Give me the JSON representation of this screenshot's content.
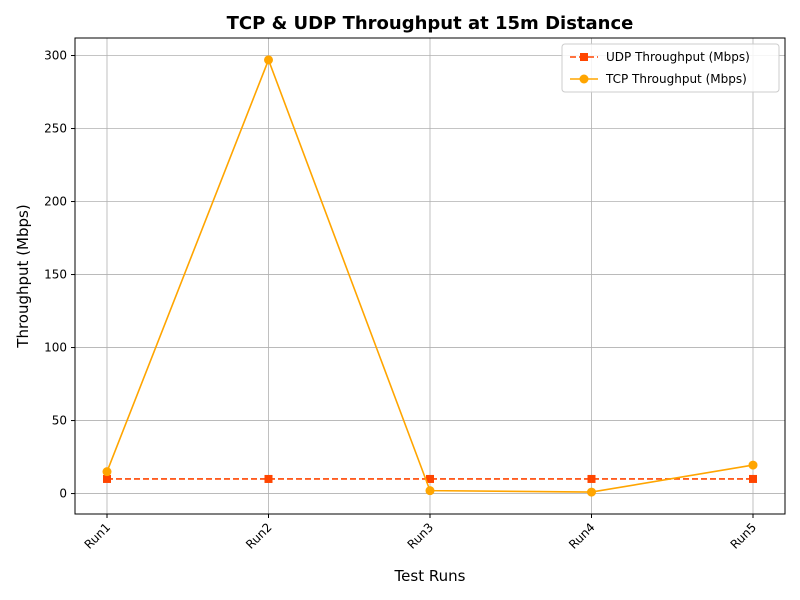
{
  "chart_data": {
    "type": "line",
    "title": "TCP & UDP Throughput at 15m Distance",
    "xlabel": "Test Runs",
    "ylabel": "Throughput (Mbps)",
    "categories": [
      "Run1",
      "Run2",
      "Run3",
      "Run4",
      "Run5"
    ],
    "ylim": [
      -14,
      312
    ],
    "yticks": [
      0,
      50,
      100,
      150,
      200,
      250,
      300
    ],
    "grid": true,
    "legend_position": "top-right",
    "series": [
      {
        "name": "UDP Throughput (Mbps)",
        "values": [
          10,
          10,
          10,
          10,
          10
        ],
        "color": "#ff4500",
        "line_style": "dashed",
        "marker": "square"
      },
      {
        "name": "TCP Throughput (Mbps)",
        "values": [
          15,
          297,
          2,
          1,
          19.5
        ],
        "color": "#ffa500",
        "line_style": "solid",
        "marker": "circle"
      }
    ]
  }
}
